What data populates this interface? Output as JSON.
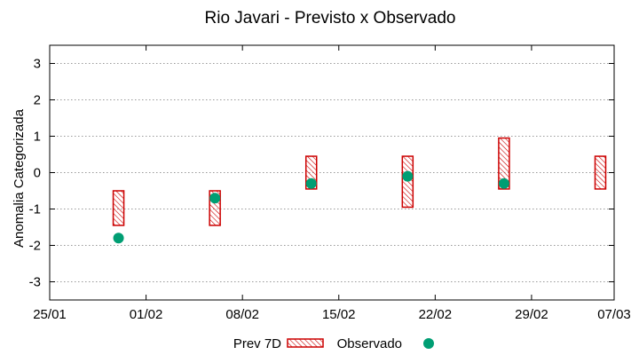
{
  "chart_data": {
    "type": "floating-bar-scatter",
    "title": "Rio Javari - Previsto x Observado",
    "xlabel": "",
    "ylabel": "Anomalia Categorizada",
    "ylim": [
      -3.5,
      3.5
    ],
    "yticks": [
      3,
      2,
      1,
      0,
      -1,
      -2,
      -3
    ],
    "xlim_days": [
      0,
      41
    ],
    "xticks": [
      {
        "label": "25/01",
        "day": 0
      },
      {
        "label": "01/02",
        "day": 7
      },
      {
        "label": "08/02",
        "day": 14
      },
      {
        "label": "15/02",
        "day": 21
      },
      {
        "label": "22/02",
        "day": 28
      },
      {
        "label": "29/02",
        "day": 35
      },
      {
        "label": "07/03",
        "day": 41
      }
    ],
    "grid": "horizontal-dotted",
    "series": [
      {
        "name": "Prev 7D",
        "style": "hatched-box",
        "color": "#cc0000",
        "points": [
          {
            "day": 5,
            "low": -1.45,
            "high": -0.5
          },
          {
            "day": 12,
            "low": -1.45,
            "high": -0.5
          },
          {
            "day": 19,
            "low": -0.45,
            "high": 0.45
          },
          {
            "day": 26,
            "low": -0.95,
            "high": 0.45
          },
          {
            "day": 33,
            "low": -0.45,
            "high": 0.95
          },
          {
            "day": 40,
            "low": -0.45,
            "high": 0.45
          }
        ]
      },
      {
        "name": "Observado",
        "style": "dot",
        "color": "#009e73",
        "points": [
          {
            "day": 5,
            "value": -1.8
          },
          {
            "day": 12,
            "value": -0.7
          },
          {
            "day": 19,
            "value": -0.3
          },
          {
            "day": 26,
            "value": -0.1
          },
          {
            "day": 33,
            "value": -0.3
          }
        ]
      }
    ],
    "legend": {
      "position": "bottom-center",
      "entries": [
        "Prev 7D",
        "Observado"
      ]
    }
  }
}
